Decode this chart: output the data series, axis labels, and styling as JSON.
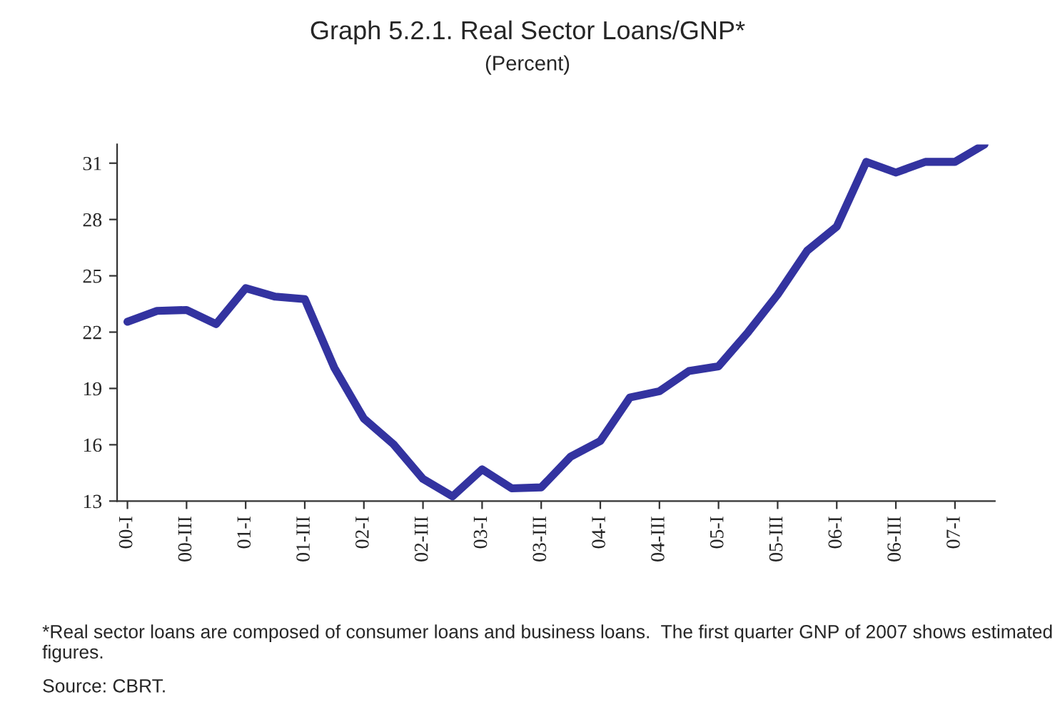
{
  "chart_data": {
    "type": "line",
    "title": "Graph 5.2.1. Real Sector Loans/GNP*",
    "subtitle": "(Percent)",
    "categories": [
      "00-I",
      null,
      "00-III",
      null,
      "01-I",
      null,
      "01-III",
      null,
      "02-I",
      null,
      "02-III",
      null,
      "03-I",
      null,
      "03-III",
      null,
      "04-I",
      null,
      "04-III",
      null,
      "05-I",
      null,
      "05-III",
      null,
      "06-I",
      null,
      "06-III",
      null,
      "07-I",
      null
    ],
    "series": [
      {
        "color": "#3333a0",
        "values": [
          22.55,
          23.13,
          23.18,
          22.43,
          24.34,
          23.89,
          23.76,
          20.1,
          17.39,
          16.03,
          14.18,
          13.25,
          14.69,
          13.68,
          13.73,
          15.37,
          16.2,
          18.52,
          18.85,
          19.93,
          20.18,
          22.0,
          24.0,
          26.34,
          27.62,
          31.07,
          30.5,
          31.07,
          31.07,
          32.0
        ]
      }
    ],
    "ylim": [
      13,
      32
    ],
    "yticks": [
      13,
      16,
      19,
      22,
      25,
      28,
      31
    ],
    "grid": false,
    "legend": false,
    "marker": "none",
    "line_style": "solid",
    "annotations": [
      "*Real sector loans are composed of consumer loans and business loans.  The first quarter GNP of 2007 shows estimated figures.",
      "Source: CBRT."
    ]
  }
}
